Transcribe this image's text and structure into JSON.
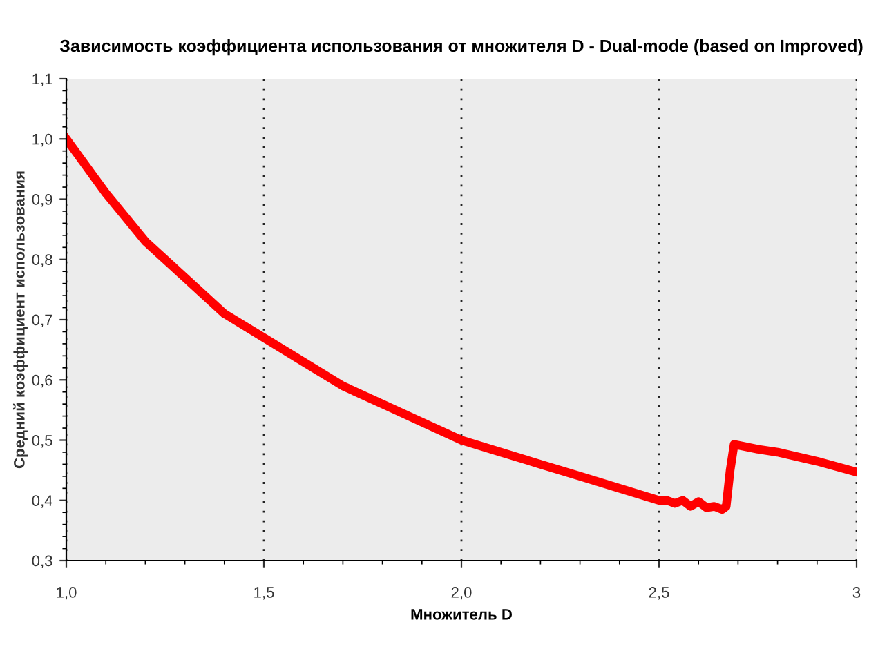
{
  "chart_data": {
    "type": "line",
    "title": "Зависимость коэффициента использования от множителя D - Dual-mode (based on Improved)",
    "xlabel": "Множитель D",
    "ylabel": "Средний коэффициент использования",
    "x": [
      1.0,
      1.1,
      1.2,
      1.3,
      1.4,
      1.5,
      1.6,
      1.7,
      1.8,
      1.9,
      2.0,
      2.1,
      2.2,
      2.3,
      2.4,
      2.5,
      2.52,
      2.54,
      2.56,
      2.58,
      2.6,
      2.62,
      2.64,
      2.66,
      2.67,
      2.68,
      2.69,
      2.75,
      2.8,
      2.9,
      3.0
    ],
    "series": [
      {
        "color": "#ff0000",
        "values": [
          1.0,
          0.91,
          0.83,
          0.77,
          0.71,
          0.67,
          0.63,
          0.59,
          0.56,
          0.53,
          0.5,
          0.48,
          0.46,
          0.44,
          0.42,
          0.4,
          0.4,
          0.395,
          0.4,
          0.39,
          0.398,
          0.388,
          0.39,
          0.385,
          0.39,
          0.45,
          0.493,
          0.485,
          0.48,
          0.465,
          0.447
        ]
      }
    ],
    "xlim": [
      1.0,
      3.0
    ],
    "ylim": [
      0.3,
      1.1
    ],
    "xticks": [
      {
        "value": 1.0,
        "label": "1,0"
      },
      {
        "value": 1.5,
        "label": "1,5"
      },
      {
        "value": 2.0,
        "label": "2,0"
      },
      {
        "value": 2.5,
        "label": "2,5"
      },
      {
        "value": 3.0,
        "label": "3"
      }
    ],
    "yticks": [
      {
        "value": 0.3,
        "label": "0,3"
      },
      {
        "value": 0.4,
        "label": "0,4"
      },
      {
        "value": 0.5,
        "label": "0,5"
      },
      {
        "value": 0.6,
        "label": "0,6"
      },
      {
        "value": 0.7,
        "label": "0,7"
      },
      {
        "value": 0.8,
        "label": "0,8"
      },
      {
        "value": 0.9,
        "label": "0,9"
      },
      {
        "value": 1.0,
        "label": "1,0"
      },
      {
        "value": 1.1,
        "label": "1,1"
      }
    ],
    "grid": "x",
    "marker": "none",
    "line_style": "solid"
  }
}
